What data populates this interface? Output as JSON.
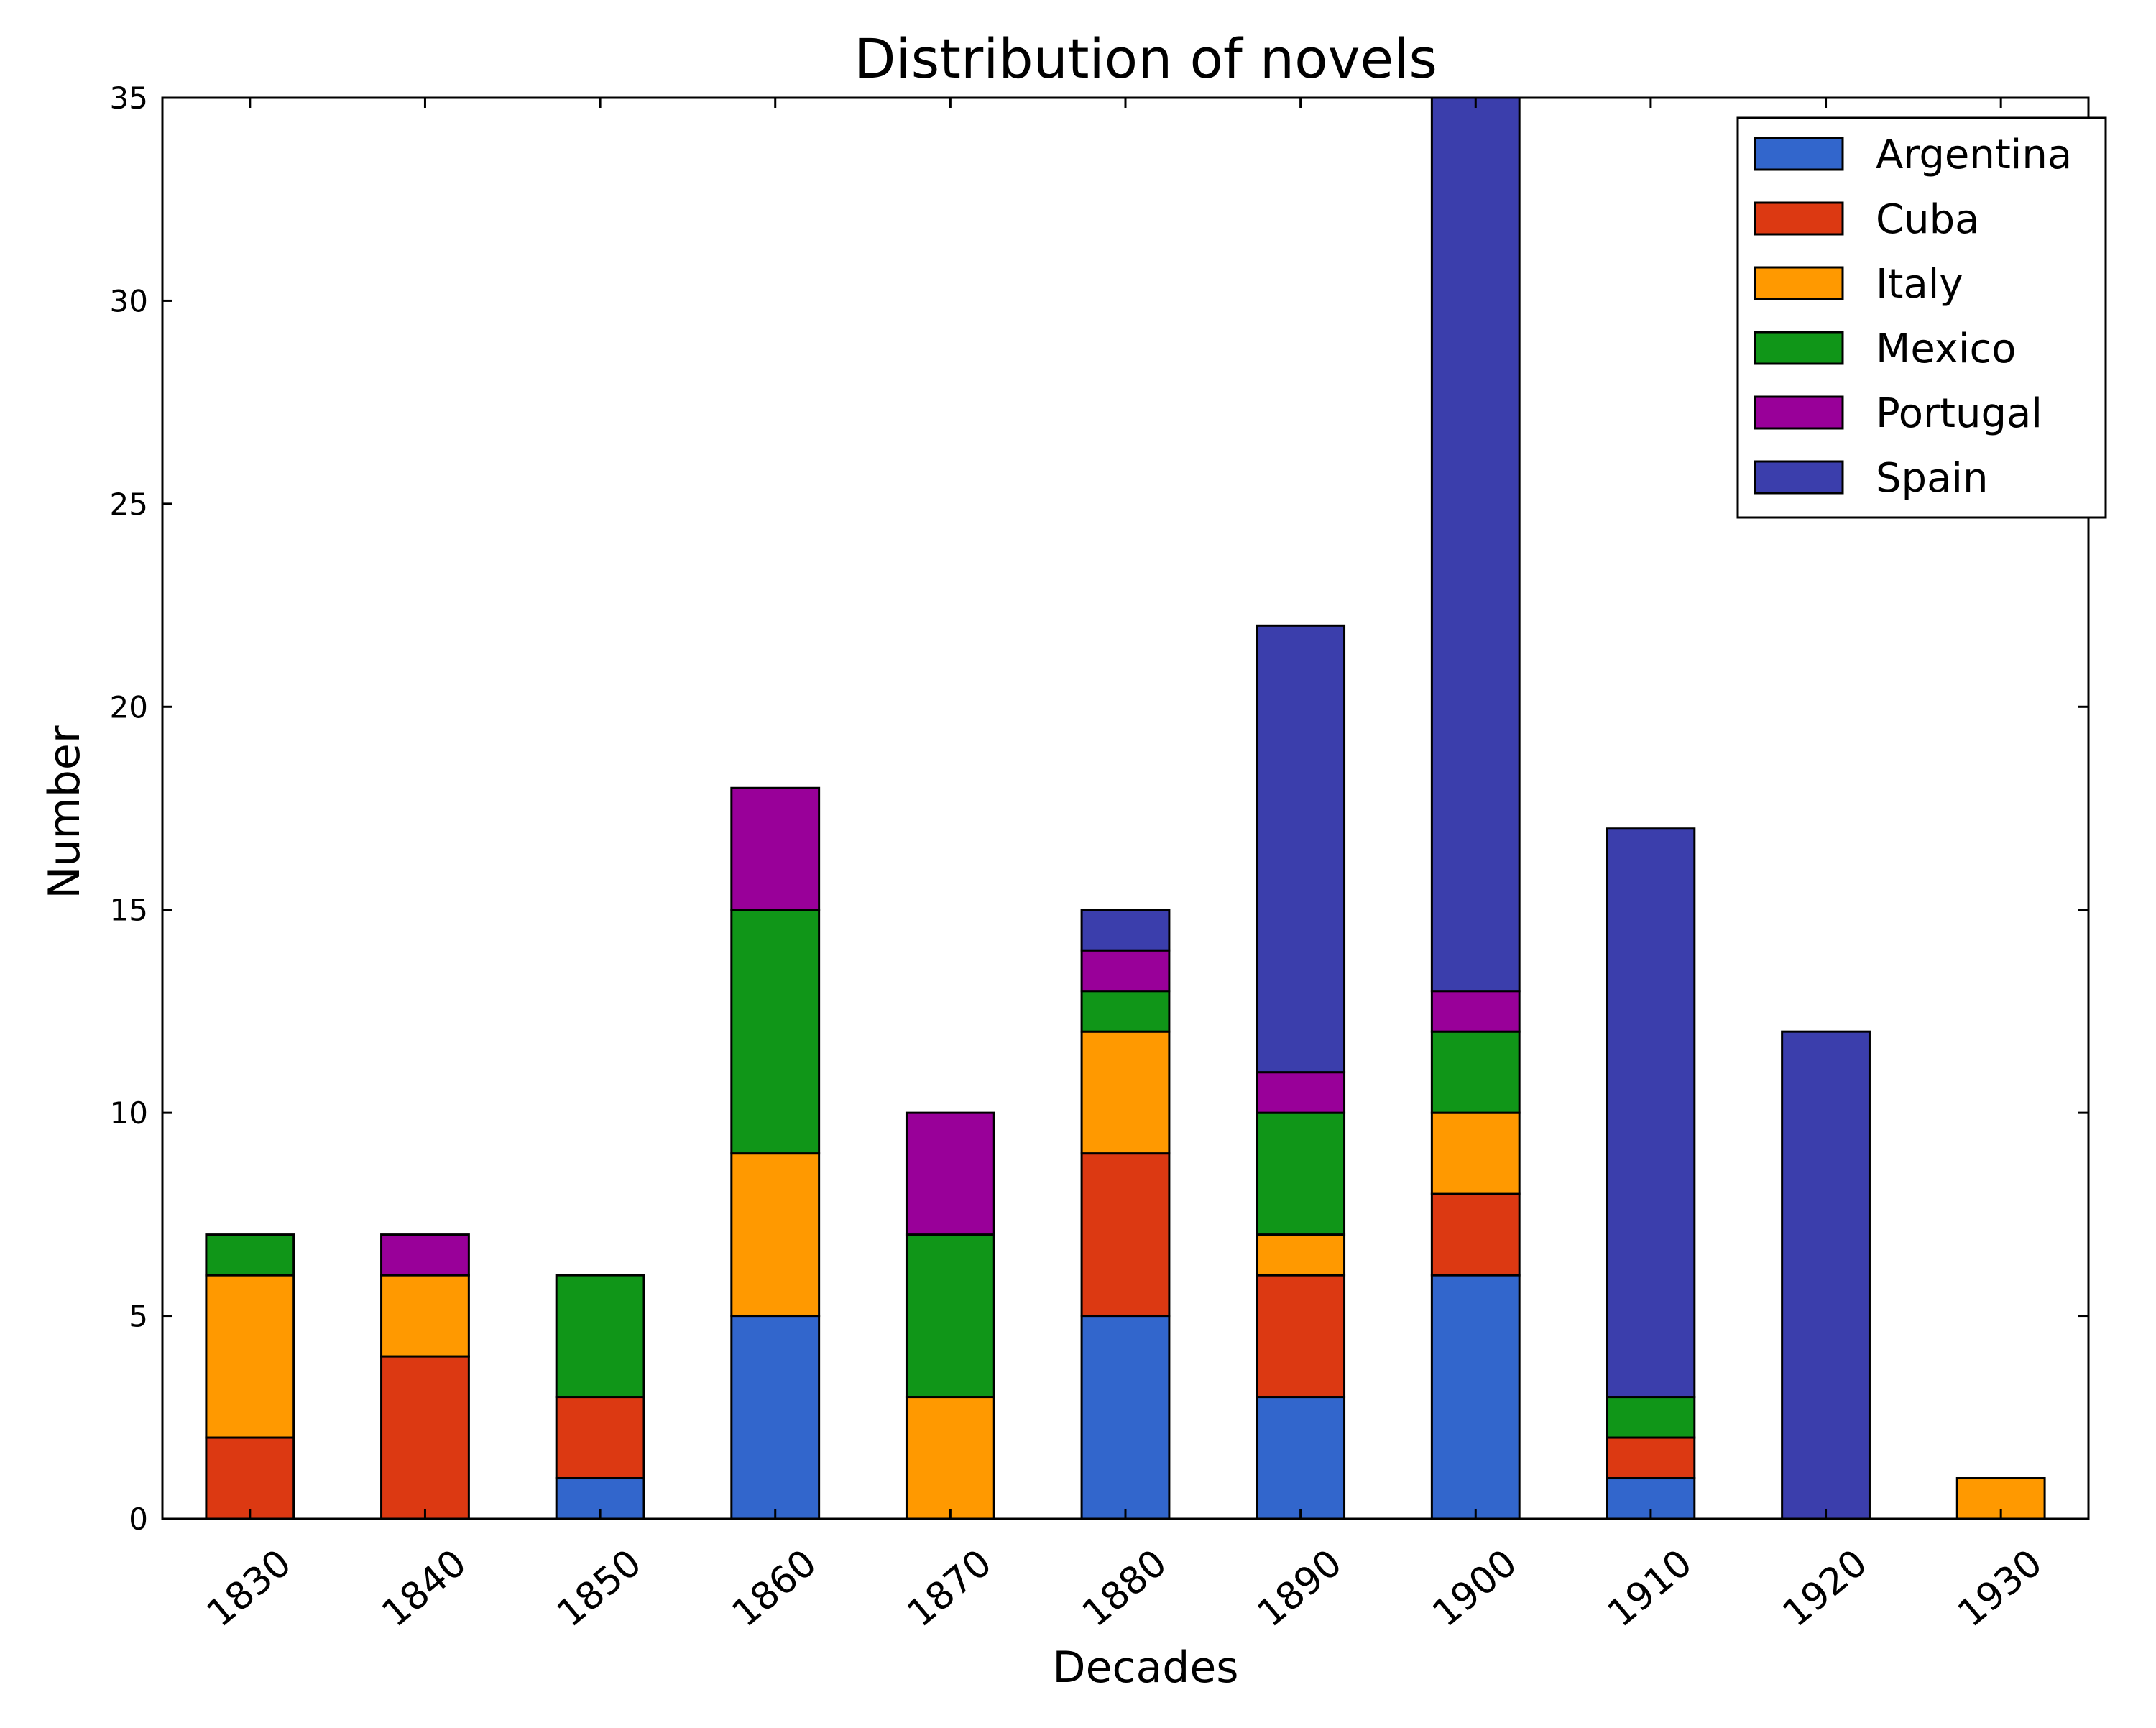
{
  "chart_data": {
    "type": "bar",
    "stacked": true,
    "title": "Distribution of novels",
    "xlabel": "Decades",
    "ylabel": "Number",
    "ylim": [
      0,
      35
    ],
    "yticks": [
      "0",
      "5",
      "10",
      "15",
      "20",
      "25",
      "30",
      "35"
    ],
    "categories": [
      "1830",
      "1840",
      "1850",
      "1860",
      "1870",
      "1880",
      "1890",
      "1900",
      "1910",
      "1920",
      "1930"
    ],
    "legend_position": "top-right",
    "grid": false,
    "series": [
      {
        "name": "Argentina",
        "color": "#3266CC",
        "values": [
          0,
          0,
          1,
          5,
          0,
          5,
          3,
          6,
          1,
          0,
          0
        ]
      },
      {
        "name": "Cuba",
        "color": "#DC3912",
        "values": [
          2,
          4,
          2,
          0,
          0,
          4,
          3,
          2,
          1,
          0,
          0
        ]
      },
      {
        "name": "Italy",
        "color": "#FF9900",
        "values": [
          4,
          2,
          0,
          4,
          3,
          3,
          1,
          2,
          0,
          0,
          1
        ]
      },
      {
        "name": "Mexico",
        "color": "#109618",
        "values": [
          1,
          0,
          3,
          6,
          4,
          1,
          3,
          2,
          1,
          0,
          0
        ]
      },
      {
        "name": "Portugal",
        "color": "#990099",
        "values": [
          0,
          1,
          0,
          3,
          3,
          1,
          1,
          1,
          0,
          0,
          0
        ]
      },
      {
        "name": "Spain",
        "color": "#3B3EAC",
        "values": [
          0,
          0,
          0,
          0,
          0,
          1,
          11,
          22,
          14,
          12,
          0
        ]
      }
    ]
  }
}
